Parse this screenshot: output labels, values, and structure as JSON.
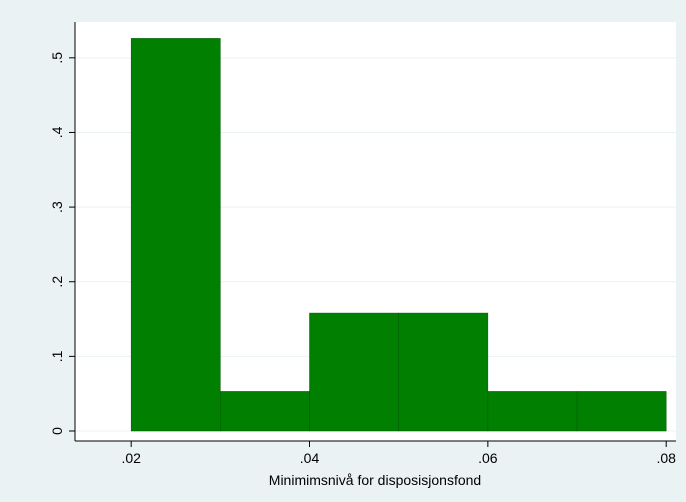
{
  "chart_data": {
    "type": "histogram",
    "x_label": "Minimimsnivå for disposisjonsfond",
    "bins": [
      0.02,
      0.03,
      0.04,
      0.05,
      0.06,
      0.07,
      0.08
    ],
    "values": [
      0.526,
      0.053,
      0.158,
      0.158,
      0.053,
      0.053
    ],
    "color": "#007f00",
    "xlim": [
      0.0137,
      0.0811
    ],
    "xticks": [
      {
        "value": 0.02,
        "label": ".02"
      },
      {
        "value": 0.04,
        "label": ".04"
      },
      {
        "value": 0.06,
        "label": ".06"
      },
      {
        "value": 0.08,
        "label": ".08"
      }
    ],
    "ylim": [
      -0.0134,
      0.548
    ],
    "yticks": [
      0,
      {
        "value": 0.1,
        "label": ".1"
      },
      {
        "value": 0.2,
        "label": ".2"
      },
      {
        "value": 0.3,
        "label": ".3"
      },
      {
        "value": 0.4,
        "label": ".4"
      },
      {
        "value": 0.5,
        "label": ".5"
      }
    ],
    "grid": true
  }
}
